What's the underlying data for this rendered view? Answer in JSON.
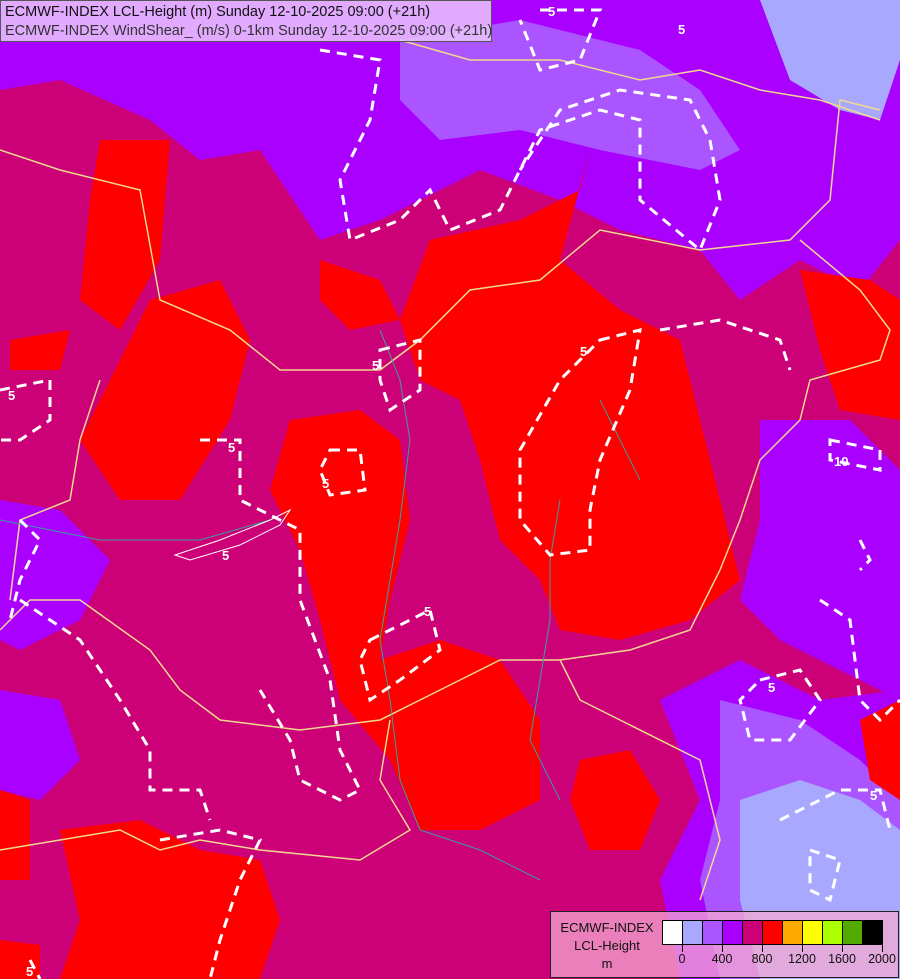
{
  "header": {
    "line1": "ECMWF-INDEX LCL-Height (m) Sunday 12-10-2025 09:00 (+21h)",
    "line2": "ECMWF-INDEX WindShear_ (m/s) 0-1km Sunday 12-10-2025 09:00 (+21h)"
  },
  "map": {
    "colors": {
      "background_800_1000": "#cc0077",
      "red_1000_1200": "#ff0000",
      "purple_600_800": "#aa00ff",
      "violet_400_600": "#aa55ff",
      "lavender_200_400": "#a8a8ff",
      "border": "#f0d890",
      "river": "#3aa0a0",
      "contour": "#ffffff"
    },
    "contour_labels": [
      "5",
      "5",
      "5",
      "5",
      "5",
      "5",
      "5",
      "5",
      "5",
      "10",
      "5",
      "5",
      "5"
    ]
  },
  "legend": {
    "title1": "ECMWF-INDEX",
    "title2": "LCL-Height",
    "unit": "m",
    "colors": [
      "#ffffff",
      "#a8a8ff",
      "#aa55ff",
      "#aa00ff",
      "#cc0077",
      "#ff0000",
      "#ffaa00",
      "#ffff00",
      "#aaff00",
      "#55aa00",
      "#000000"
    ],
    "ticks": [
      "0",
      "400",
      "800",
      "1200",
      "1600",
      "2000"
    ]
  }
}
